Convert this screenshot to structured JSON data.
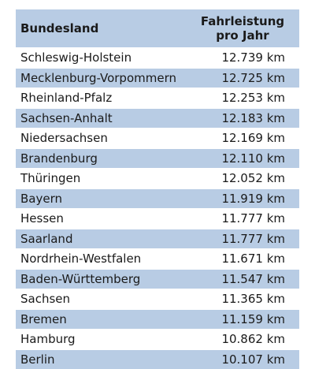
{
  "table": {
    "headers": {
      "state": "Bundesland",
      "mileage_line1": "Fahrleistung",
      "mileage_line2": "pro Jahr"
    },
    "rows": [
      {
        "state": "Schleswig-Holstein",
        "value": "12.739 km"
      },
      {
        "state": "Mecklenburg-Vorpommern",
        "value": "12.725 km"
      },
      {
        "state": "Rheinland-Pfalz",
        "value": "12.253 km"
      },
      {
        "state": "Sachsen-Anhalt",
        "value": "12.183 km"
      },
      {
        "state": "Niedersachsen",
        "value": "12.169 km"
      },
      {
        "state": "Brandenburg",
        "value": "12.110 km"
      },
      {
        "state": "Thüringen",
        "value": "12.052 km"
      },
      {
        "state": "Bayern",
        "value": "11.919 km"
      },
      {
        "state": "Hessen",
        "value": "11.777 km"
      },
      {
        "state": "Saarland",
        "value": "11.777 km"
      },
      {
        "state": "Nordrhein-Westfalen",
        "value": "11.671 km"
      },
      {
        "state": "Baden-Württemberg",
        "value": "11.547 km"
      },
      {
        "state": "Sachsen",
        "value": "11.365 km"
      },
      {
        "state": "Bremen",
        "value": "11.159 km"
      },
      {
        "state": "Hamburg",
        "value": "10.862 km"
      },
      {
        "state": "Berlin",
        "value": "10.107 km"
      }
    ]
  },
  "colors": {
    "header_bg": "#b8cce4",
    "stripe_bg": "#b8cce4",
    "row_bg": "#ffffff"
  }
}
